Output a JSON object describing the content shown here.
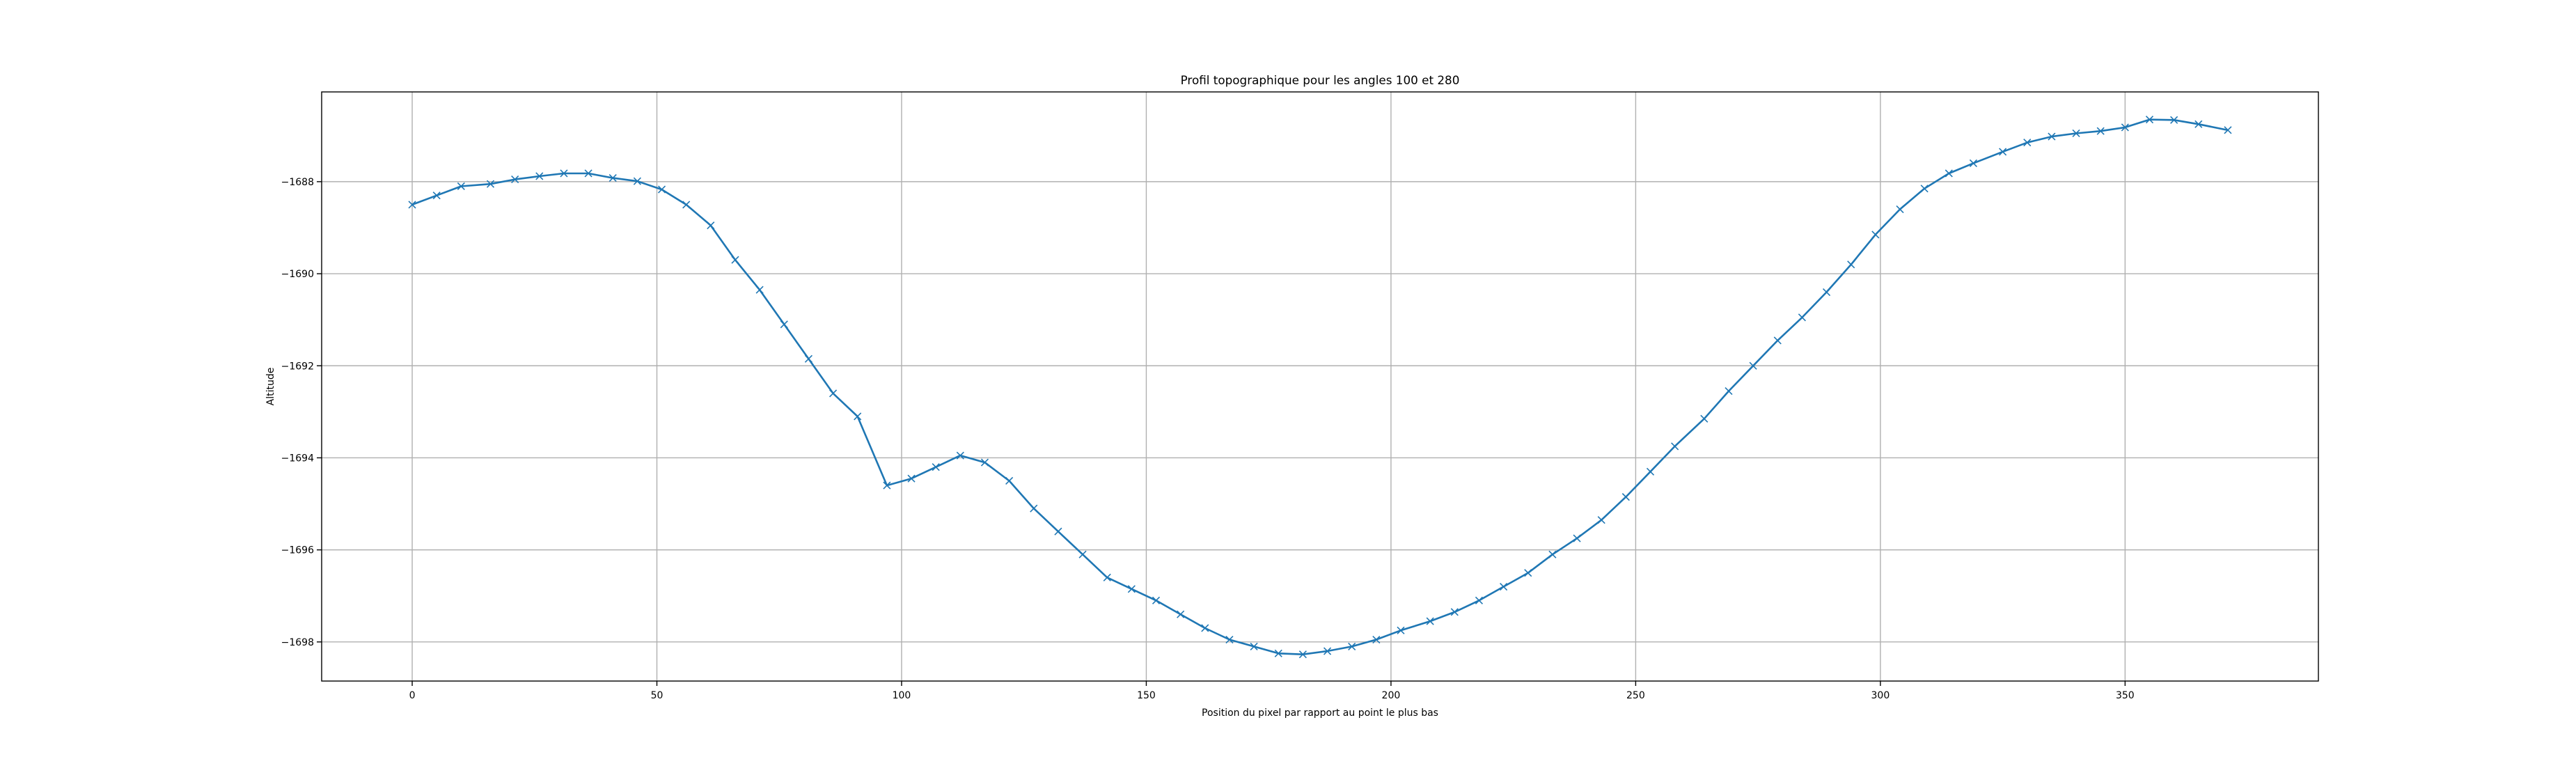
{
  "chart_data": {
    "type": "line",
    "title": "Profil topographique pour les angles 100 et 280",
    "xlabel": "Position du pixel par rapport au point le plus bas",
    "ylabel": "Altitude",
    "xlim": [
      -18.5,
      389.5
    ],
    "ylim": [
      -1698.85,
      -1686.05
    ],
    "xticks": [
      0,
      50,
      100,
      150,
      200,
      250,
      300,
      350
    ],
    "yticks": [
      -1698,
      -1696,
      -1694,
      -1692,
      -1690,
      -1688
    ],
    "xtick_labels": [
      "0",
      "50",
      "100",
      "150",
      "200",
      "250",
      "300",
      "350"
    ],
    "ytick_labels": [
      "−1698",
      "−1696",
      "−1694",
      "−1692",
      "−1690",
      "−1688"
    ],
    "grid": true,
    "marker": "x",
    "color": "#1f77b4",
    "series": [
      {
        "x": [
          0,
          5,
          10,
          16,
          21,
          26,
          31,
          36,
          41,
          46,
          51,
          56,
          61,
          66,
          71,
          76,
          81,
          86,
          91,
          97,
          102,
          107,
          112,
          117,
          122,
          127,
          132,
          137,
          142,
          147,
          152,
          157,
          162,
          167,
          172,
          177,
          182,
          187,
          192,
          197,
          202,
          208,
          213,
          218,
          223,
          228,
          233,
          238,
          243,
          248,
          253,
          258,
          264,
          269,
          274,
          279,
          284,
          289,
          294,
          299,
          304,
          309,
          314,
          319,
          325,
          330,
          335,
          340,
          345,
          350,
          355,
          360,
          365,
          371
        ],
        "y": [
          -1688.5,
          -1688.3,
          -1688.1,
          -1688.05,
          -1687.95,
          -1687.88,
          -1687.82,
          -1687.82,
          -1687.92,
          -1687.99,
          -1688.17,
          -1688.5,
          -1688.95,
          -1689.7,
          -1690.35,
          -1691.1,
          -1691.85,
          -1692.6,
          -1693.1,
          -1694.6,
          -1694.45,
          -1694.2,
          -1693.95,
          -1694.1,
          -1694.5,
          -1695.1,
          -1695.6,
          -1696.1,
          -1696.6,
          -1696.85,
          -1697.1,
          -1697.4,
          -1697.7,
          -1697.95,
          -1698.1,
          -1698.25,
          -1698.27,
          -1698.2,
          -1698.1,
          -1697.95,
          -1697.75,
          -1697.55,
          -1697.35,
          -1697.1,
          -1696.8,
          -1696.5,
          -1696.1,
          -1695.75,
          -1695.35,
          -1694.85,
          -1694.3,
          -1693.75,
          -1693.15,
          -1692.55,
          -1692.0,
          -1691.45,
          -1690.95,
          -1690.4,
          -1689.8,
          -1689.15,
          -1688.6,
          -1688.15,
          -1687.82,
          -1687.6,
          -1687.35,
          -1687.15,
          -1687.02,
          -1686.95,
          -1686.9,
          -1686.82,
          -1686.65,
          -1686.66,
          -1686.75,
          -1686.88
        ]
      }
    ]
  }
}
